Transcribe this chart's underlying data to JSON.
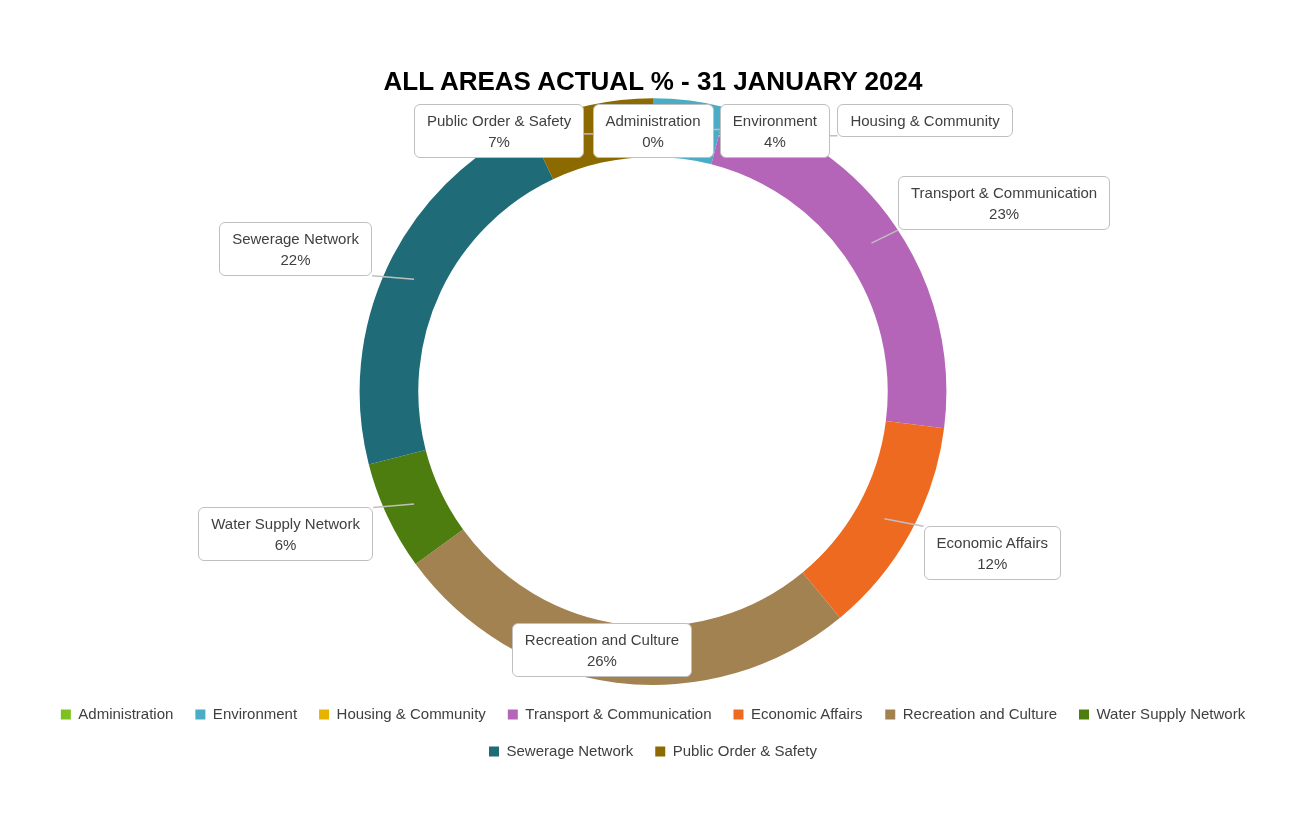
{
  "chart_data": {
    "type": "donut",
    "title": "ALL AREAS ACTUAL % - 31 JANUARY 2024",
    "categories": [
      "Administration",
      "Environment",
      "Housing & Community",
      "Transport & Communication",
      "Economic Affairs",
      "Recreation and Culture",
      "Water Supply Network",
      "Sewerage Network",
      "Public Order & Safety"
    ],
    "values": [
      0,
      4,
      0,
      23,
      12,
      26,
      6,
      22,
      7
    ],
    "value_labels": [
      "0%",
      "4%",
      null,
      "23%",
      "12%",
      "26%",
      "6%",
      "22%",
      "7%"
    ],
    "colors": [
      "#7cc11f",
      "#4bacc6",
      "#e8b200",
      "#b565b8",
      "#ee6a20",
      "#a38252",
      "#4d7c0f",
      "#1f6b78",
      "#8c6a00"
    ],
    "legend": "bottom"
  }
}
